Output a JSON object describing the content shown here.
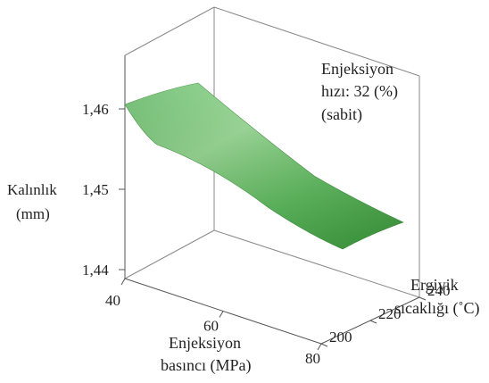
{
  "chart_data": {
    "type": "surface",
    "title": "",
    "annotation": [
      "Enjeksiyon",
      "hızı: 32 (%)",
      "(sabit)"
    ],
    "zlabel": [
      "Kalınlık",
      "(mm)"
    ],
    "xlabel": [
      "Enjeksiyon",
      "basıncı (MPa)"
    ],
    "ylabel": [
      "Ergiyik",
      "sıcaklığı (˚C)"
    ],
    "x_ticks": [
      "40",
      "60",
      "80"
    ],
    "y_ticks": [
      "200",
      "220",
      "240"
    ],
    "z_ticks": [
      "1,44",
      "1,45",
      "1,46"
    ],
    "x_range": [
      40,
      80
    ],
    "y_range": [
      200,
      240
    ],
    "z_range": [
      1.44,
      1.465
    ],
    "surface_corners": [
      {
        "pressure": 40,
        "temperature": 200,
        "thickness": 1.458
      },
      {
        "pressure": 40,
        "temperature": 240,
        "thickness": 1.4625
      },
      {
        "pressure": 80,
        "temperature": 200,
        "thickness": 1.4445
      },
      {
        "pressure": 80,
        "temperature": 240,
        "thickness": 1.449
      }
    ],
    "surface_color": "#4caf50"
  }
}
